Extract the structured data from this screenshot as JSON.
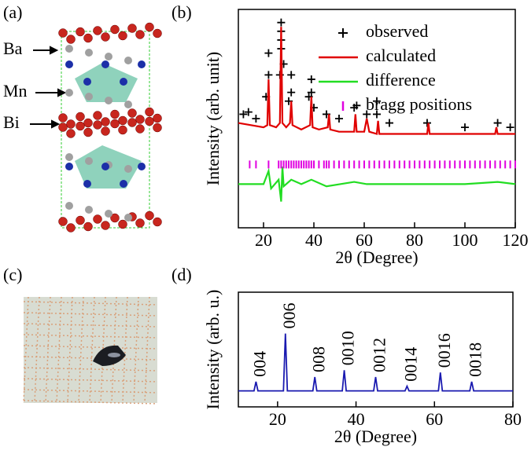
{
  "panel_labels": [
    "(a)",
    "(b)",
    "(c)",
    "(d)"
  ],
  "structure": {
    "labels": [
      "Ba",
      "Mn",
      "Bi"
    ]
  },
  "chart_data": [
    {
      "type": "line",
      "ylabel": "Intensity (arb. unit)",
      "xlabel": "2θ (Degree)",
      "xlim": [
        10,
        120
      ],
      "xticks": [
        20,
        40,
        60,
        80,
        100,
        120
      ],
      "ylim": [
        0,
        100
      ],
      "series": [
        {
          "name": "observed",
          "style": "cross",
          "color": "#000000",
          "x": [
            12,
            14,
            17,
            21,
            22,
            22,
            26.5,
            27,
            27,
            27,
            27,
            28,
            30,
            31,
            31,
            38,
            39,
            39,
            40,
            45,
            50,
            56,
            57,
            61,
            65,
            65,
            70,
            85,
            100,
            113,
            118
          ],
          "values": [
            52,
            53,
            50,
            60,
            70,
            80,
            70,
            82,
            86,
            90,
            94,
            75,
            58,
            62,
            70,
            60,
            62,
            68,
            55,
            52,
            50,
            55,
            56,
            52,
            52,
            58,
            48,
            48,
            46,
            48,
            46
          ]
        },
        {
          "name": "calculated",
          "style": "line",
          "color": "#e00000",
          "x": [
            10,
            15,
            20,
            21.5,
            22,
            22.5,
            25,
            26.5,
            27,
            27.5,
            29,
            30.5,
            31,
            31.5,
            35,
            38.5,
            39,
            39.5,
            42,
            45.5,
            46,
            46.5,
            50,
            56,
            56.5,
            57,
            60,
            61,
            62,
            65,
            65.5,
            66,
            70,
            75,
            85,
            85.5,
            86,
            90,
            100,
            112,
            112.5,
            113,
            120
          ],
          "values": [
            48,
            47,
            46,
            47,
            68,
            47,
            46,
            48,
            92,
            48,
            46,
            48,
            58,
            47,
            45,
            47,
            60,
            46,
            45,
            46,
            52,
            45,
            44,
            44,
            52,
            44,
            44,
            50,
            44,
            43,
            49,
            43,
            43,
            43,
            43,
            48,
            43,
            43,
            43,
            43,
            46,
            43,
            43
          ]
        },
        {
          "name": "difference",
          "style": "line",
          "color": "#22dd22",
          "x": [
            10,
            15,
            20,
            22,
            23,
            26,
            27,
            27.5,
            28,
            31,
            35,
            39,
            45,
            56,
            61,
            70,
            85,
            100,
            113,
            120
          ],
          "values": [
            20,
            20,
            20,
            26,
            18,
            22,
            12,
            28,
            19,
            22,
            20,
            22,
            19,
            21,
            20,
            20,
            20,
            20,
            21,
            20
          ]
        },
        {
          "name": "bragg positions",
          "style": "tick",
          "color": "#e000e0",
          "x": [
            14.5,
            17,
            22,
            26,
            27,
            28,
            29,
            30,
            31,
            32,
            33,
            34,
            35,
            36,
            37,
            38,
            39,
            40,
            42,
            44,
            45,
            46,
            48,
            50,
            52,
            54,
            56,
            58,
            60,
            62,
            64,
            66,
            68,
            70,
            72,
            74,
            76,
            78,
            80,
            82,
            84,
            86,
            88,
            90,
            92,
            94,
            96,
            98,
            100,
            102,
            104,
            106,
            108,
            110,
            112,
            114,
            116,
            118,
            120
          ],
          "values": [
            29,
            29,
            29,
            29,
            29,
            29,
            29,
            29,
            29,
            29,
            29,
            29,
            29,
            29,
            29,
            29,
            29,
            29,
            29,
            29,
            29,
            29,
            29,
            29,
            29,
            29,
            29,
            29,
            29,
            29,
            29,
            29,
            29,
            29,
            29,
            29,
            29,
            29,
            29,
            29,
            29,
            29,
            29,
            29,
            29,
            29,
            29,
            29,
            29,
            29,
            29,
            29,
            29,
            29,
            29,
            29,
            29,
            29,
            29
          ]
        }
      ]
    },
    {
      "type": "line",
      "ylabel": "Intensity (arb. u.)",
      "xlabel": "2θ  (Degree)",
      "xlim": [
        10,
        80
      ],
      "xticks": [
        20,
        40,
        60,
        80
      ],
      "ylim": [
        0,
        100
      ],
      "series": [
        {
          "style": "line",
          "color": "#1a1ab0",
          "x": [
            10,
            14,
            14.5,
            15,
            21.5,
            22,
            22.5,
            29,
            29.5,
            30,
            36.5,
            37,
            37.5,
            44.5,
            45,
            45.5,
            52.5,
            53,
            53.5,
            61,
            61.5,
            62,
            69,
            69.5,
            70,
            80
          ],
          "values": [
            14,
            14,
            22,
            14,
            14,
            64,
            14,
            14,
            26,
            14,
            14,
            32,
            14,
            14,
            26,
            14,
            14,
            18,
            14,
            14,
            30,
            14,
            14,
            22,
            14,
            14
          ]
        }
      ],
      "annotations": [
        {
          "text": "004",
          "x": 14.5
        },
        {
          "text": "006",
          "x": 22
        },
        {
          "text": "008",
          "x": 29.5
        },
        {
          "text": "0010",
          "x": 37
        },
        {
          "text": "0012",
          "x": 45
        },
        {
          "text": "0014",
          "x": 53
        },
        {
          "text": "0016",
          "x": 61.5
        },
        {
          "text": "0018",
          "x": 69.5
        }
      ]
    }
  ]
}
